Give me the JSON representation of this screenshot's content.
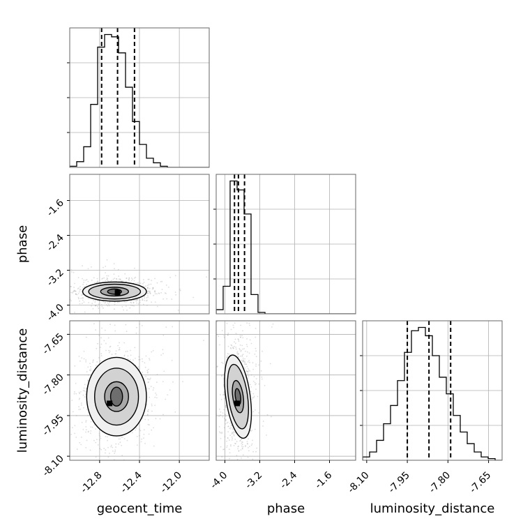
{
  "chart_data": {
    "type": "corner",
    "parameters": [
      "geocent_time",
      "phase",
      "luminosity_distance"
    ],
    "axis_labels": {
      "geocent_time": "geocent_time",
      "phase": "phase",
      "luminosity_distance": "luminosity_distance"
    },
    "ranges": {
      "geocent_time": [
        -13.1,
        -11.7
      ],
      "phase": [
        -4.2,
        -1.0
      ],
      "luminosity_distance": [
        -8.115,
        -7.6
      ]
    },
    "ticks": {
      "geocent_time": [
        "-12.8",
        "-12.4",
        "-12.0"
      ],
      "phase": [
        "-4.0",
        "-3.2",
        "-2.4",
        "-1.6"
      ],
      "luminosity_distance": [
        "-8.10",
        "-7.95",
        "-7.80",
        "-7.65"
      ]
    },
    "tick_values": {
      "geocent_time": [
        -12.8,
        -12.4,
        -12.0
      ],
      "phase": [
        -4.0,
        -3.2,
        -2.4,
        -1.6
      ],
      "luminosity_distance": [
        -8.1,
        -7.95,
        -7.8,
        -7.65
      ]
    },
    "quantiles": {
      "geocent_time": [
        -12.78,
        -12.62,
        -12.45
      ],
      "phase": [
        -3.78,
        -3.69,
        -3.55
      ],
      "luminosity_distance": [
        -7.95,
        -7.87,
        -7.79
      ]
    },
    "histograms": {
      "geocent_time": {
        "edges_start": -13.1,
        "bin_width": 0.07,
        "counts": [
          1,
          5,
          18,
          55,
          105,
          116,
          114,
          100,
          70,
          40,
          20,
          8,
          4,
          1,
          0,
          0,
          0,
          0,
          0,
          0
        ]
      },
      "phase": {
        "edges_start": -4.2,
        "bin_width": 0.16,
        "counts": [
          6,
          40,
          193,
          180,
          145,
          28,
          2,
          0,
          0,
          0,
          0,
          0,
          0,
          0,
          0,
          0,
          0,
          0,
          0,
          0
        ]
      },
      "luminosity_distance": {
        "edges_start": -8.115,
        "bin_width": 0.02575,
        "counts": [
          2,
          5,
          12,
          22,
          33,
          48,
          65,
          78,
          80,
          75,
          63,
          50,
          40,
          27,
          17,
          10,
          5,
          2,
          1,
          0
        ]
      }
    },
    "joint": {
      "phase_vs_geocent_time": {
        "center": [
          -12.65,
          -3.69
        ],
        "contour_levels": [
          {
            "rx": 0.07,
            "ry": 0.06
          },
          {
            "rx": 0.14,
            "ry": 0.1
          },
          {
            "rx": 0.26,
            "ry": 0.17
          },
          {
            "rx": 0.32,
            "ry": 0.22
          }
        ],
        "density_peak": [
          -12.62,
          -3.71
        ]
      },
      "luminosity_distance_vs_geocent_time": {
        "center": [
          -12.63,
          -7.88
        ],
        "contour_levels": [
          {
            "rx": 0.06,
            "ry": 0.035
          },
          {
            "rx": 0.12,
            "ry": 0.055
          },
          {
            "rx": 0.22,
            "ry": 0.105
          },
          {
            "rx": 0.3,
            "ry": 0.145
          }
        ],
        "density_peak": [
          -12.7,
          -7.905
        ]
      },
      "luminosity_distance_vs_phase": {
        "center": [
          -3.7,
          -7.88
        ],
        "contour_levels": [
          {
            "rx": 0.06,
            "ry": 0.03
          },
          {
            "rx": 0.12,
            "ry": 0.06
          },
          {
            "rx": 0.22,
            "ry": 0.12
          },
          {
            "rx": 0.28,
            "ry": 0.155
          }
        ],
        "density_peak": [
          -3.72,
          -7.905
        ]
      }
    },
    "grid": true,
    "colors": {
      "hist": "#000000",
      "points": "#9a9a9a",
      "grid": "#b0b0b0"
    }
  }
}
